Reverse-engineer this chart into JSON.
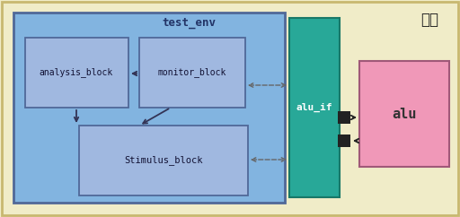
{
  "bg_color": "#f0ecc8",
  "outer_border_color": "#c8b870",
  "test_env_color": "#82b4e0",
  "test_env_border": "#506898",
  "block_color": "#a0b8e0",
  "block_border": "#506898",
  "alu_if_color": "#28a898",
  "alu_if_border": "#187868",
  "alu_color": "#f098b8",
  "alu_border": "#a05878",
  "connector_color": "#222222",
  "title_text": "顶层",
  "test_env_label": "test_env",
  "analysis_label": "analysis_block",
  "monitor_label": "monitor_block",
  "stimulus_label": "Stimulus_block",
  "alu_if_label": "alu_if",
  "alu_label": "alu"
}
